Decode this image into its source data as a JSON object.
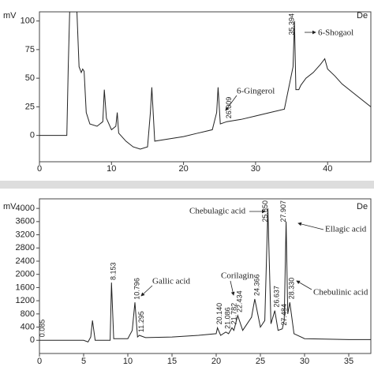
{
  "chart_data": [
    {
      "type": "line",
      "y_label": "mV",
      "detector_label": "De",
      "color": "#222",
      "xlim": [
        0,
        46
      ],
      "ylim": [
        -23,
        108
      ],
      "xticks": [
        0,
        10,
        20,
        30,
        40
      ],
      "yticks": [
        0,
        25,
        50,
        75,
        100
      ],
      "x": [
        0,
        3.8,
        4.0,
        4.2,
        5.2,
        5.5,
        5.8,
        6.0,
        6.2,
        6.5,
        7.0,
        8.0,
        8.8,
        9.0,
        9.3,
        10.0,
        10.6,
        10.8,
        11.0,
        12.0,
        13.0,
        14.0,
        15.0,
        15.4,
        15.6,
        16.0,
        18.0,
        20.0,
        22.0,
        24.0,
        24.6,
        24.8,
        25.1,
        26.0,
        28.0,
        30.0,
        32.0,
        34.0,
        35.2,
        35.4,
        35.6,
        36.0,
        36.3,
        37.0,
        38.0,
        39.0,
        39.6,
        40.0,
        41.0,
        42.0,
        44.0,
        46.0
      ],
      "values": [
        0,
        0,
        60,
        108,
        108,
        60,
        55,
        58,
        56,
        20,
        10,
        8,
        12,
        40,
        15,
        5,
        8,
        20,
        2,
        -5,
        -10,
        -12,
        -10,
        20,
        42,
        -5,
        -3,
        -1,
        2,
        5,
        20,
        42,
        10,
        12,
        14,
        17,
        20,
        23,
        60,
        100,
        40,
        40,
        44,
        50,
        55,
        62,
        67,
        58,
        52,
        45,
        35,
        25
      ],
      "peak_labels": [
        "26.009",
        "35.394"
      ],
      "annotations": [
        "6-Gingerol",
        "6-Shogaol"
      ]
    },
    {
      "type": "line",
      "y_label": "mV",
      "detector_label": "De",
      "color": "#222",
      "xlim": [
        0,
        37.5
      ],
      "ylim": [
        -400,
        4290
      ],
      "xticks": [
        0,
        5,
        10,
        15,
        20,
        25,
        30,
        35
      ],
      "yticks": [
        0,
        400,
        800,
        1200,
        1600,
        2000,
        2400,
        2800,
        3200,
        3600,
        4000
      ],
      "x": [
        0,
        5.0,
        5.5,
        5.8,
        6.0,
        6.3,
        8.0,
        8.15,
        8.4,
        10.0,
        10.5,
        10.8,
        11.1,
        11.3,
        12.0,
        15.0,
        18.0,
        20.0,
        20.14,
        20.5,
        21.086,
        21.4,
        21.782,
        22.0,
        22.434,
        23.0,
        24.0,
        24.366,
        25.0,
        25.5,
        25.85,
        26.2,
        26.637,
        27.0,
        27.484,
        27.7,
        27.907,
        28.1,
        28.33,
        28.8,
        30.0,
        35.0,
        37.5
      ],
      "values": [
        0,
        0,
        -50,
        100,
        600,
        0,
        0,
        1750,
        50,
        50,
        300,
        1150,
        100,
        150,
        80,
        100,
        150,
        200,
        380,
        150,
        250,
        200,
        380,
        300,
        750,
        300,
        700,
        1250,
        400,
        600,
        4000,
        500,
        900,
        300,
        350,
        600,
        3600,
        800,
        1150,
        200,
        50,
        20,
        20
      ],
      "peak_labels": [
        "0.085",
        "8.153",
        "10.796",
        "11.295",
        "20.140",
        "21.086",
        "21.782",
        "22.434",
        "24.366",
        "25.850",
        "26.637",
        "27.484",
        "27.907",
        "28.330"
      ],
      "annotations": [
        "Gallic acid",
        "Corilagin",
        "Chebulagic acid",
        "Ellagic acid",
        "Chebulinic acid"
      ]
    }
  ]
}
